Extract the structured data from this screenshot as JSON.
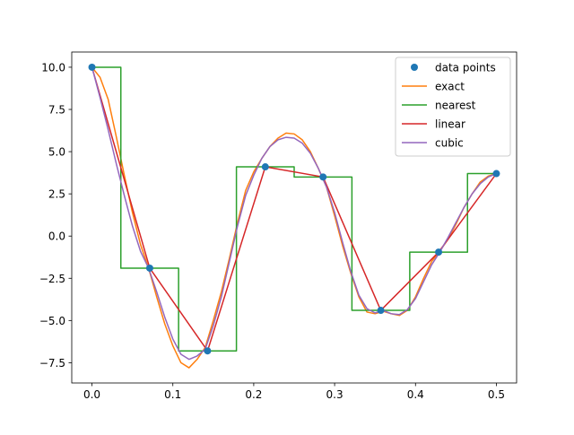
{
  "chart_data": {
    "type": "line",
    "title": "",
    "xlabel": "",
    "ylabel": "",
    "xlim": [
      -0.025,
      0.525
    ],
    "ylim": [
      -8.7,
      10.9
    ],
    "xticks": [
      0.0,
      0.1,
      0.2,
      0.3,
      0.4,
      0.5
    ],
    "xtick_labels": [
      "0.0",
      "0.1",
      "0.2",
      "0.3",
      "0.4",
      "0.5"
    ],
    "yticks": [
      -7.5,
      -5.0,
      -2.5,
      0.0,
      2.5,
      5.0,
      7.5,
      10.0
    ],
    "ytick_labels": [
      "−7.5",
      "−5.0",
      "−2.5",
      "0.0",
      "2.5",
      "5.0",
      "7.5",
      "10.0"
    ],
    "grid": false,
    "legend_position": "upper right",
    "data_points": {
      "name": "data points",
      "color": "#1f77b4",
      "x": [
        0.0,
        0.0714,
        0.1429,
        0.2143,
        0.2857,
        0.3571,
        0.4286,
        0.5
      ],
      "y": [
        10.0,
        -1.9,
        -6.8,
        4.1,
        3.5,
        -4.4,
        -0.95,
        3.7
      ]
    },
    "series": [
      {
        "name": "exact",
        "color": "#ff7f0e",
        "x": [
          0.0,
          0.01,
          0.02,
          0.03,
          0.04,
          0.05,
          0.06,
          0.07,
          0.08,
          0.09,
          0.1,
          0.11,
          0.12,
          0.13,
          0.14,
          0.15,
          0.16,
          0.17,
          0.18,
          0.19,
          0.2,
          0.21,
          0.22,
          0.23,
          0.24,
          0.25,
          0.26,
          0.27,
          0.28,
          0.29,
          0.3,
          0.31,
          0.32,
          0.33,
          0.34,
          0.35,
          0.36,
          0.37,
          0.38,
          0.39,
          0.4,
          0.41,
          0.42,
          0.43,
          0.44,
          0.45,
          0.46,
          0.47,
          0.48,
          0.49,
          0.5
        ],
        "y": [
          10.0,
          9.4,
          8.1,
          5.9,
          3.6,
          1.4,
          -0.5,
          -1.9,
          -3.6,
          -5.2,
          -6.5,
          -7.5,
          -7.8,
          -7.3,
          -6.6,
          -5.0,
          -3.3,
          -1.3,
          0.8,
          2.7,
          3.8,
          4.6,
          5.3,
          5.8,
          6.1,
          6.05,
          5.7,
          5.0,
          4.0,
          2.9,
          1.2,
          -0.6,
          -2.2,
          -3.6,
          -4.5,
          -4.6,
          -4.45,
          -4.6,
          -4.7,
          -4.4,
          -3.6,
          -2.5,
          -1.5,
          -0.9,
          -0.2,
          0.7,
          1.7,
          2.5,
          3.2,
          3.55,
          3.7
        ]
      },
      {
        "name": "nearest",
        "color": "#2ca02c",
        "x": [
          0.0,
          0.0357,
          0.0357,
          0.1071,
          0.1071,
          0.1786,
          0.1786,
          0.25,
          0.25,
          0.3214,
          0.3214,
          0.3929,
          0.3929,
          0.4643,
          0.4643,
          0.5
        ],
        "y": [
          10.0,
          10.0,
          -1.9,
          -1.9,
          -6.8,
          -6.8,
          4.1,
          4.1,
          3.5,
          3.5,
          -4.4,
          -4.4,
          -0.95,
          -0.95,
          3.7,
          3.7
        ]
      },
      {
        "name": "linear",
        "color": "#d62728",
        "x": [
          0.0,
          0.0714,
          0.1429,
          0.2143,
          0.2857,
          0.3571,
          0.4286,
          0.5
        ],
        "y": [
          10.0,
          -1.9,
          -6.8,
          4.1,
          3.5,
          -4.4,
          -0.95,
          3.7
        ]
      },
      {
        "name": "cubic",
        "color": "#9467bd",
        "x": [
          0.0,
          0.01,
          0.02,
          0.03,
          0.04,
          0.05,
          0.06,
          0.07,
          0.08,
          0.09,
          0.1,
          0.11,
          0.12,
          0.13,
          0.14,
          0.15,
          0.16,
          0.17,
          0.18,
          0.19,
          0.2,
          0.21,
          0.22,
          0.23,
          0.24,
          0.25,
          0.26,
          0.27,
          0.28,
          0.29,
          0.3,
          0.31,
          0.32,
          0.33,
          0.34,
          0.35,
          0.36,
          0.37,
          0.38,
          0.39,
          0.4,
          0.41,
          0.42,
          0.43,
          0.44,
          0.45,
          0.46,
          0.47,
          0.48,
          0.49,
          0.5
        ],
        "y": [
          10.0,
          8.2,
          6.3,
          4.3,
          2.4,
          0.6,
          -0.9,
          -1.9,
          -3.3,
          -4.8,
          -6.1,
          -7.0,
          -7.3,
          -7.1,
          -6.7,
          -5.3,
          -3.6,
          -1.5,
          0.6,
          2.4,
          3.6,
          4.6,
          5.3,
          5.7,
          5.85,
          5.8,
          5.5,
          4.9,
          4.0,
          2.9,
          1.4,
          -0.4,
          -2.1,
          -3.5,
          -4.3,
          -4.55,
          -4.4,
          -4.6,
          -4.65,
          -4.35,
          -3.7,
          -2.7,
          -1.7,
          -0.95,
          -0.1,
          0.8,
          1.7,
          2.5,
          3.1,
          3.5,
          3.7
        ]
      }
    ]
  }
}
